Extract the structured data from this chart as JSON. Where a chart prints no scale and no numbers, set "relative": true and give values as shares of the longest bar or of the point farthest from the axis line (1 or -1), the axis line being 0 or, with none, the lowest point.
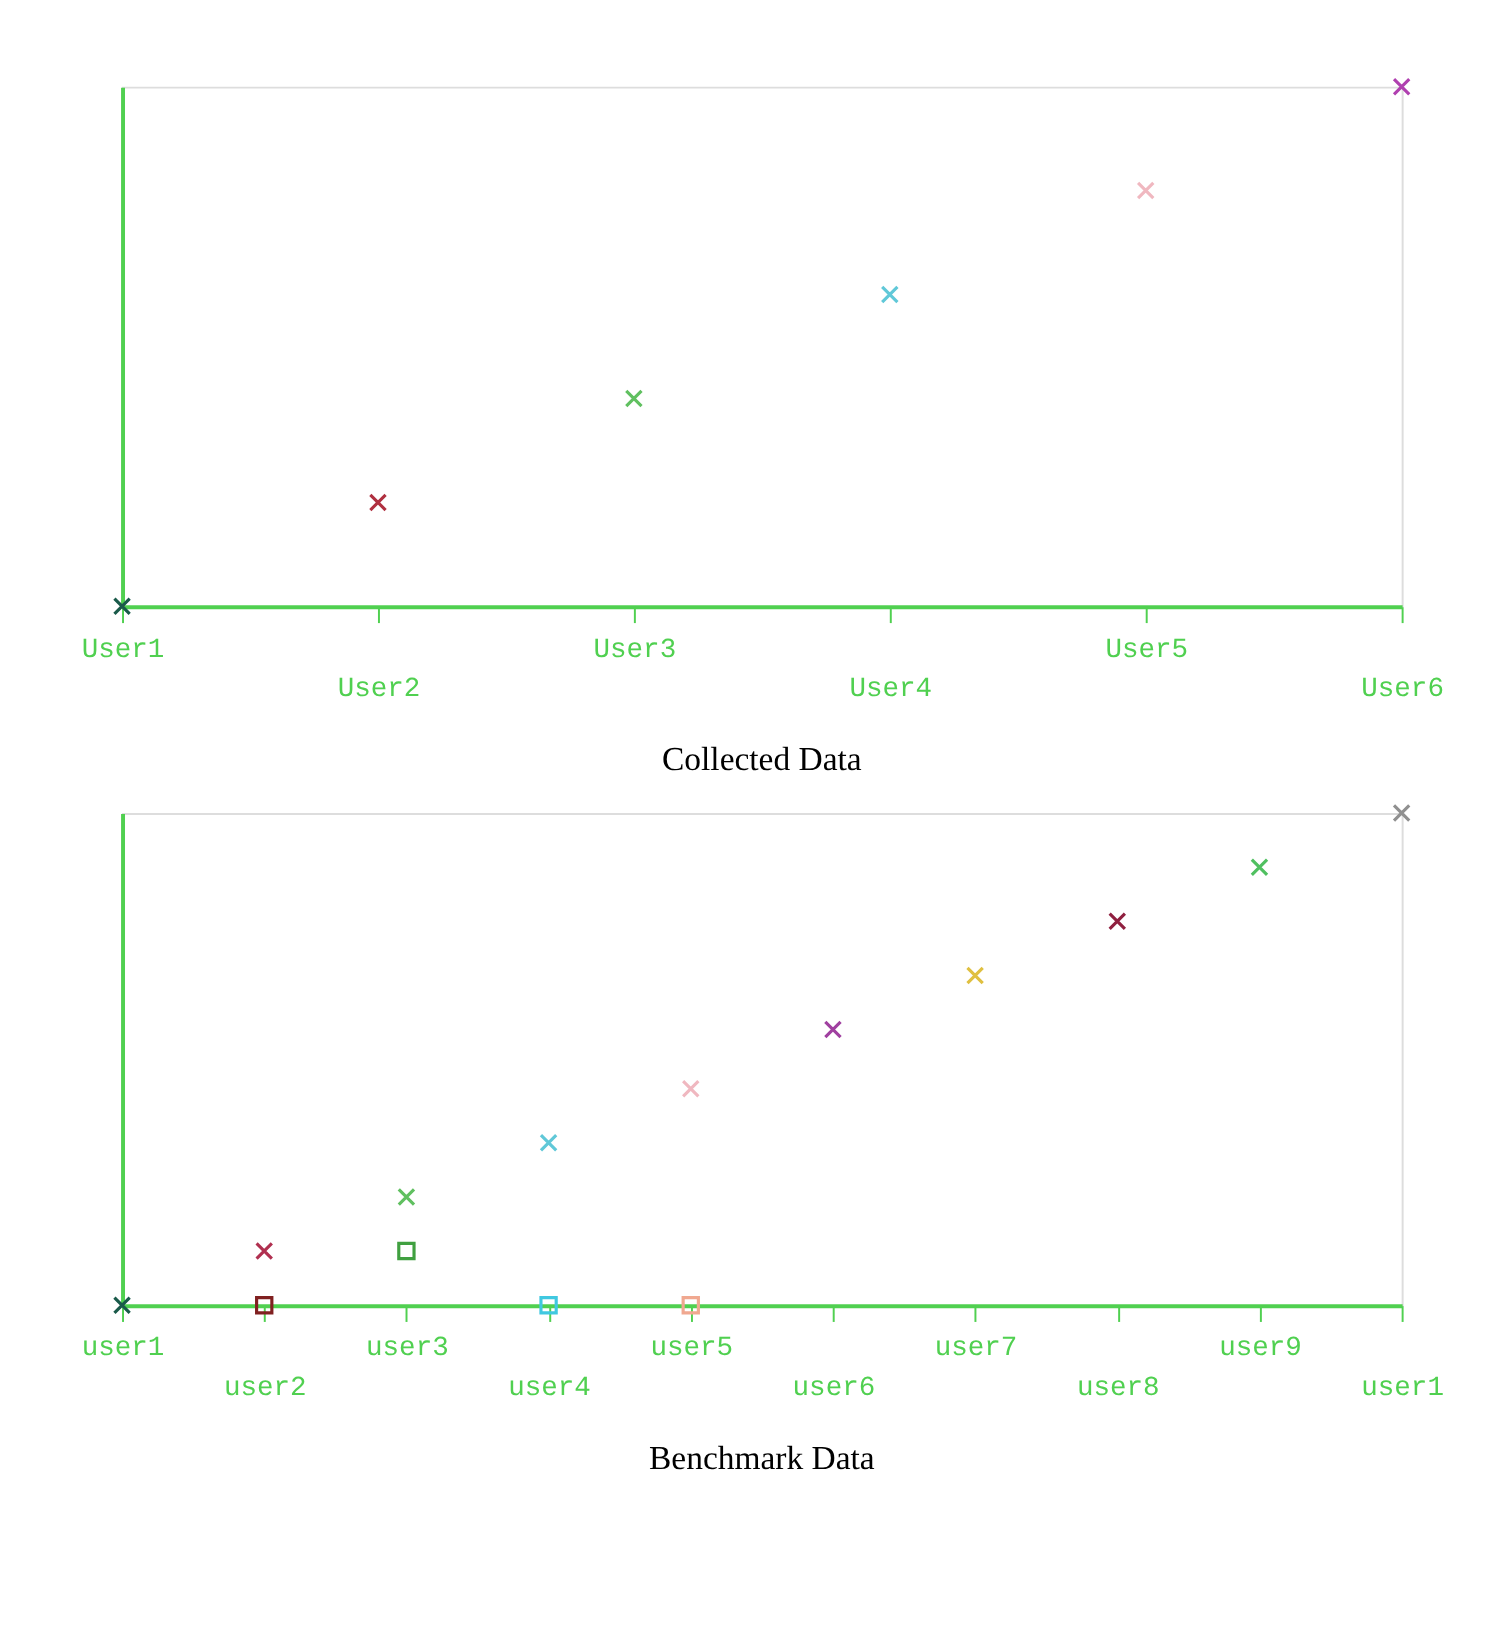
{
  "chart_data": [
    {
      "type": "scatter",
      "title": "Collected Data",
      "relative": true,
      "marker": "cross",
      "grid": false,
      "categories": [
        "User1",
        "User2",
        "User3",
        "User4",
        "User5",
        "User6"
      ],
      "series": [
        {
          "values": [
            0,
            0.2,
            0.4,
            0.6,
            0.8,
            1
          ],
          "colors": [
            "#1a5a4a",
            "#b03040",
            "#60c060",
            "#60c8d8",
            "#f0b8c0",
            "#b040b0"
          ]
        }
      ]
    },
    {
      "type": "scatter",
      "title": "Benchmark Data",
      "relative": true,
      "marker": "cross",
      "grid": false,
      "categories": [
        "user1",
        "user2",
        "user3",
        "user4",
        "user5",
        "user6",
        "user7",
        "user8",
        "user9",
        "user1"
      ],
      "series": [
        {
          "values": [
            0,
            0.11,
            0.22,
            0.33,
            0.44,
            0.56,
            0.67,
            0.78,
            0.89,
            1
          ],
          "colors": [
            "#1a5a4a",
            "#b03050",
            "#60c060",
            "#60c8d8",
            "#f0b8c0",
            "#a040a0",
            "#e0c040",
            "#902040",
            "#50c060",
            "#909090"
          ]
        },
        {
          "marker": "square",
          "values": [
            null,
            0,
            0.11,
            0,
            0,
            null,
            null,
            null,
            null,
            null
          ],
          "colors": [
            null,
            "#802020",
            "#40a040",
            "#40c8e0",
            "#f0a890",
            null,
            null,
            null,
            null,
            null
          ]
        }
      ]
    }
  ]
}
